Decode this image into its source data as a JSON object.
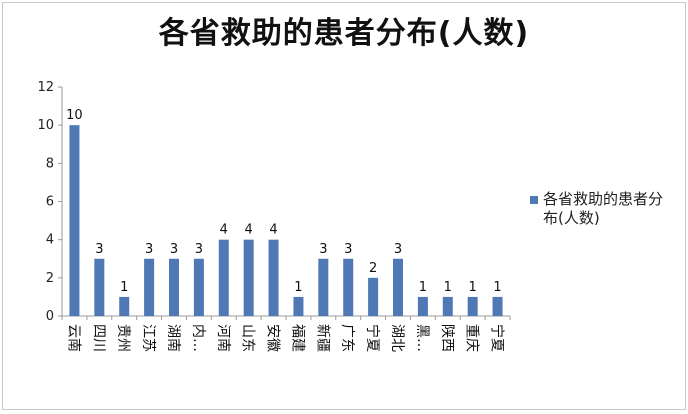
{
  "chart_data": {
    "type": "bar",
    "title": "各省救助的患者分布(人数)",
    "categories": [
      "云南",
      "四川",
      "贵州",
      "江苏",
      "湖南",
      "内…",
      "河南",
      "山东",
      "安徽",
      "福建",
      "新疆",
      "广东",
      "宁夏",
      "湖北",
      "黑…",
      "陕西",
      "重庆",
      "宁夏"
    ],
    "series": [
      {
        "name": "各省救助的患者分布(人数)",
        "values": [
          10,
          3,
          1,
          3,
          3,
          3,
          4,
          4,
          4,
          1,
          3,
          3,
          2,
          3,
          1,
          1,
          1,
          1
        ]
      }
    ],
    "ylim": [
      0,
      12
    ],
    "yticks": [
      0,
      2,
      4,
      6,
      8,
      10,
      12
    ],
    "grid": false,
    "data_labels": true,
    "legend_position": "right",
    "bar_color": "#4e79b5"
  }
}
